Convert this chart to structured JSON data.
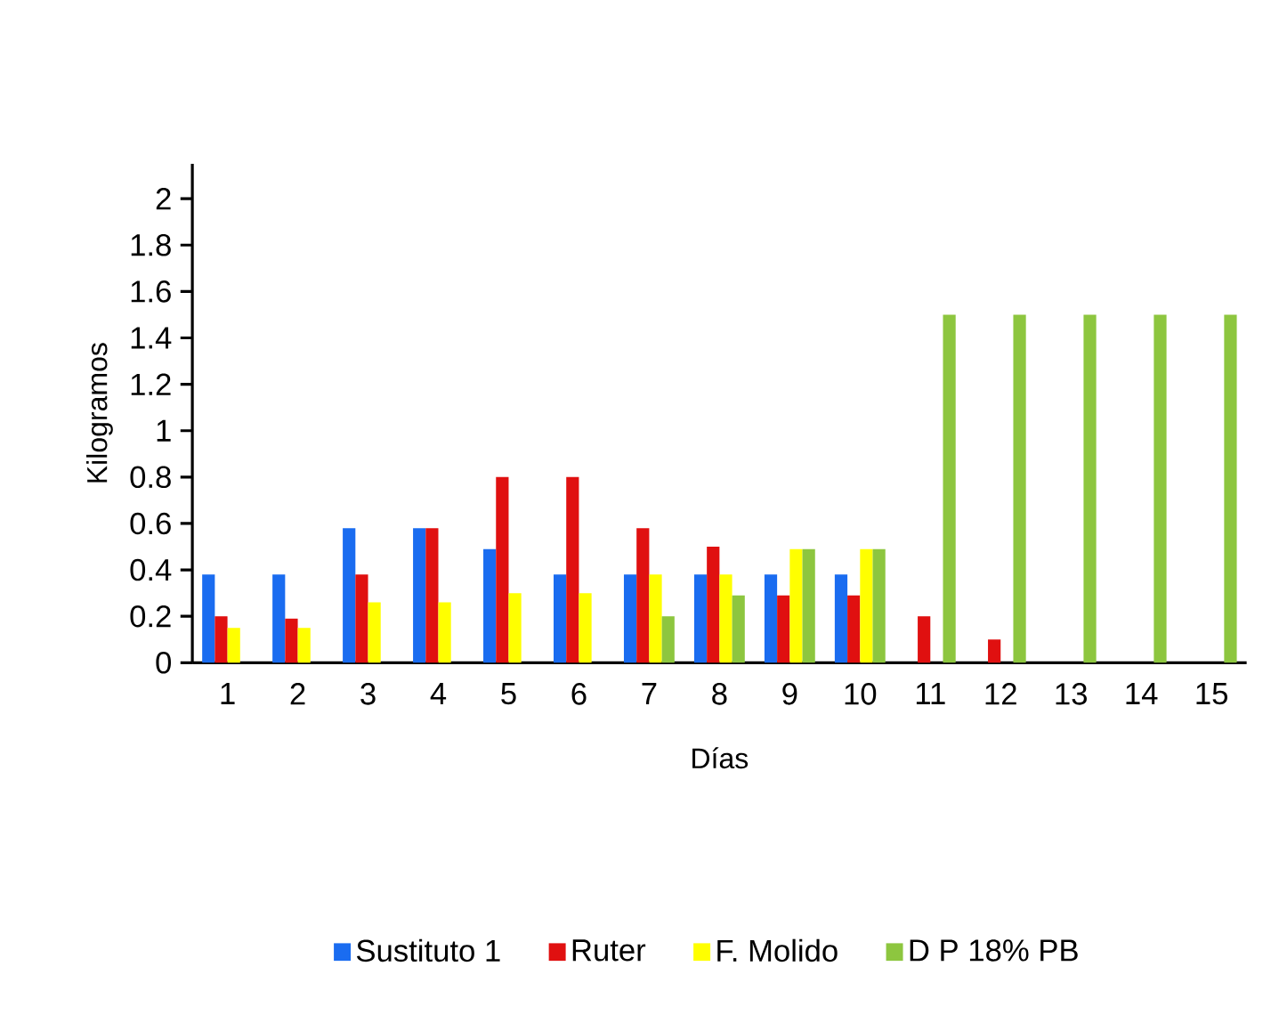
{
  "chart_data": {
    "type": "bar",
    "xlabel": "Días",
    "ylabel": "Kilogramos",
    "categories": [
      "1",
      "2",
      "3",
      "4",
      "5",
      "6",
      "7",
      "8",
      "9",
      "10",
      "11",
      "12",
      "13",
      "14",
      "15"
    ],
    "series": [
      {
        "name": "Sustituto 1",
        "color": "#1a6cf0",
        "values": [
          0.38,
          0.38,
          0.58,
          0.58,
          0.49,
          0.38,
          0.38,
          0.38,
          0.38,
          0.38,
          null,
          null,
          null,
          null,
          null
        ]
      },
      {
        "name": "Ruter",
        "color": "#e01010",
        "values": [
          0.2,
          0.19,
          0.38,
          0.58,
          0.8,
          0.8,
          0.58,
          0.5,
          0.29,
          0.29,
          0.2,
          0.1,
          null,
          null,
          null
        ]
      },
      {
        "name": "F. Molido",
        "color": "#ffff00",
        "values": [
          0.15,
          0.15,
          0.26,
          0.26,
          0.3,
          0.3,
          0.38,
          0.38,
          0.49,
          0.49,
          null,
          null,
          null,
          null,
          null
        ]
      },
      {
        "name": "D P 18% PB",
        "color": "#8dc63f",
        "values": [
          null,
          null,
          null,
          null,
          null,
          null,
          0.2,
          0.29,
          0.49,
          0.49,
          1.5,
          1.5,
          1.5,
          1.5,
          1.5
        ]
      }
    ],
    "ylim": [
      0,
      2.15
    ],
    "yticks": [
      0,
      0.2,
      0.4,
      0.6,
      0.8,
      1,
      1.2,
      1.4,
      1.6,
      1.8,
      2
    ],
    "grid": false,
    "legend": "bottom"
  }
}
